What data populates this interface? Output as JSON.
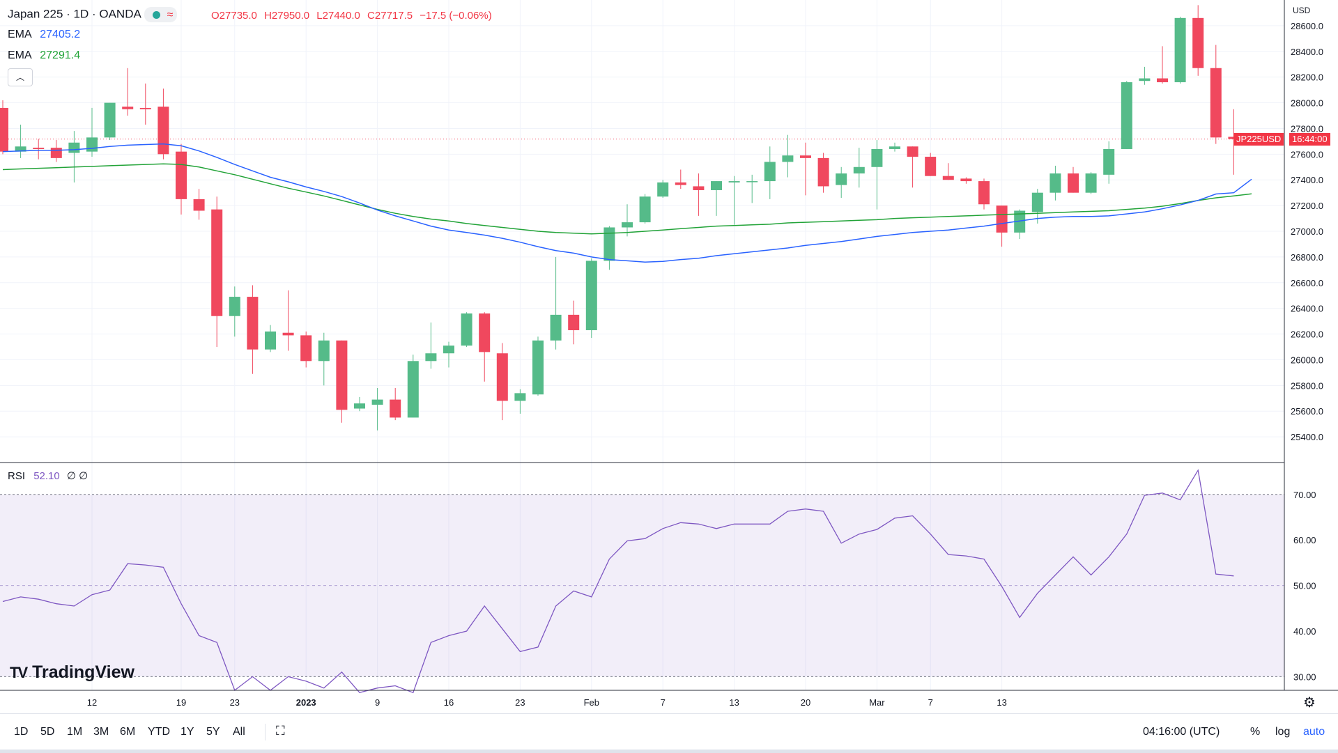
{
  "header": {
    "title": "Japan 225 · 1D · OANDA",
    "open": "O27735.0",
    "high": "H27950.0",
    "low": "L27440.0",
    "close": "C27717.5",
    "change": "−17.5 (−0.06%)",
    "ema1_label": "EMA",
    "ema1_value": "27405.2",
    "ema2_label": "EMA",
    "ema2_value": "27291.4",
    "currency": "USD"
  },
  "rsi": {
    "label": "RSI",
    "value": "52.10",
    "extra": "∅ ∅"
  },
  "logo": "TradingView",
  "price_label": {
    "symbol": "JP225USD",
    "time": "16:44:00"
  },
  "toolbar": {
    "timeframes": [
      "1D",
      "5D",
      "1M",
      "3M",
      "6M",
      "YTD",
      "1Y",
      "5Y",
      "All"
    ],
    "clock": "04:16:00 (UTC)",
    "pct": "%",
    "log": "log",
    "auto": "auto"
  },
  "colors": {
    "up": "#55bb89",
    "down": "#f0485e",
    "ema_fast": "#2962ff",
    "ema_slow": "#22a338",
    "rsi": "#7e57c2"
  },
  "icons": [
    "indicator-status-dot",
    "wave-icon",
    "chevron-up-icon",
    "calendar-range-icon",
    "gear-icon"
  ],
  "chart_data": [
    {
      "type": "candlestick",
      "title": "Japan 225 · 1D · OANDA",
      "ylim": [
        25200,
        28800
      ],
      "yticks": [
        25400,
        25600,
        25800,
        26000,
        26200,
        26400,
        26600,
        26800,
        27000,
        27200,
        27400,
        27600,
        27800,
        28000,
        28200,
        28400,
        28600
      ],
      "xtick_labels": [
        "12",
        "19",
        "23",
        "2023",
        "9",
        "16",
        "23",
        "Feb",
        "7",
        "13",
        "20",
        "Mar",
        "7",
        "13"
      ],
      "candles": [
        {
          "o": 27960,
          "h": 28020,
          "l": 27600,
          "c": 27620
        },
        {
          "o": 27620,
          "h": 27830,
          "l": 27570,
          "c": 27660
        },
        {
          "o": 27650,
          "h": 27720,
          "l": 27560,
          "c": 27640
        },
        {
          "o": 27650,
          "h": 27710,
          "l": 27540,
          "c": 27570
        },
        {
          "o": 27610,
          "h": 27780,
          "l": 27380,
          "c": 27690
        },
        {
          "o": 27620,
          "h": 27960,
          "l": 27580,
          "c": 27730
        },
        {
          "o": 27730,
          "h": 28000,
          "l": 27710,
          "c": 28000
        },
        {
          "o": 27970,
          "h": 28270,
          "l": 27900,
          "c": 27950
        },
        {
          "o": 27960,
          "h": 28150,
          "l": 27830,
          "c": 27950
        },
        {
          "o": 27970,
          "h": 28110,
          "l": 27560,
          "c": 27600
        },
        {
          "o": 27620,
          "h": 27680,
          "l": 27130,
          "c": 27250
        },
        {
          "o": 27250,
          "h": 27330,
          "l": 27090,
          "c": 27160
        },
        {
          "o": 27170,
          "h": 27270,
          "l": 26100,
          "c": 26340
        },
        {
          "o": 26340,
          "h": 26570,
          "l": 26180,
          "c": 26490
        },
        {
          "o": 26490,
          "h": 26580,
          "l": 25890,
          "c": 26080
        },
        {
          "o": 26080,
          "h": 26270,
          "l": 26060,
          "c": 26220
        },
        {
          "o": 26210,
          "h": 26540,
          "l": 26070,
          "c": 26190
        },
        {
          "o": 26190,
          "h": 26220,
          "l": 25940,
          "c": 25990
        },
        {
          "o": 25990,
          "h": 26210,
          "l": 25800,
          "c": 26150
        },
        {
          "o": 26150,
          "h": 26150,
          "l": 25510,
          "c": 25610
        },
        {
          "o": 25620,
          "h": 25710,
          "l": 25600,
          "c": 25660
        },
        {
          "o": 25650,
          "h": 25780,
          "l": 25450,
          "c": 25690
        },
        {
          "o": 25690,
          "h": 25780,
          "l": 25530,
          "c": 25550
        },
        {
          "o": 25550,
          "h": 26040,
          "l": 25550,
          "c": 25990
        },
        {
          "o": 25990,
          "h": 26290,
          "l": 25930,
          "c": 26050
        },
        {
          "o": 26050,
          "h": 26140,
          "l": 25940,
          "c": 26110
        },
        {
          "o": 26110,
          "h": 26370,
          "l": 26100,
          "c": 26360
        },
        {
          "o": 26360,
          "h": 26370,
          "l": 25830,
          "c": 26060
        },
        {
          "o": 26050,
          "h": 26130,
          "l": 25530,
          "c": 25680
        },
        {
          "o": 25680,
          "h": 25770,
          "l": 25580,
          "c": 25740
        },
        {
          "o": 25730,
          "h": 26180,
          "l": 25720,
          "c": 26150
        },
        {
          "o": 26150,
          "h": 26800,
          "l": 26080,
          "c": 26350
        },
        {
          "o": 26350,
          "h": 26460,
          "l": 26120,
          "c": 26230
        },
        {
          "o": 26230,
          "h": 26790,
          "l": 26170,
          "c": 26770
        },
        {
          "o": 26770,
          "h": 27040,
          "l": 26700,
          "c": 27030
        },
        {
          "o": 27030,
          "h": 27210,
          "l": 26960,
          "c": 27070
        },
        {
          "o": 27070,
          "h": 27290,
          "l": 27060,
          "c": 27270
        },
        {
          "o": 27270,
          "h": 27400,
          "l": 27260,
          "c": 27380
        },
        {
          "o": 27380,
          "h": 27480,
          "l": 27330,
          "c": 27360
        },
        {
          "o": 27350,
          "h": 27450,
          "l": 27120,
          "c": 27320
        },
        {
          "o": 27320,
          "h": 27390,
          "l": 27120,
          "c": 27390
        },
        {
          "o": 27380,
          "h": 27430,
          "l": 27050,
          "c": 27390
        },
        {
          "o": 27390,
          "h": 27440,
          "l": 27220,
          "c": 27390
        },
        {
          "o": 27390,
          "h": 27660,
          "l": 27250,
          "c": 27540
        },
        {
          "o": 27540,
          "h": 27750,
          "l": 27420,
          "c": 27590
        },
        {
          "o": 27590,
          "h": 27690,
          "l": 27280,
          "c": 27570
        },
        {
          "o": 27570,
          "h": 27610,
          "l": 27300,
          "c": 27350
        },
        {
          "o": 27360,
          "h": 27500,
          "l": 27260,
          "c": 27450
        },
        {
          "o": 27450,
          "h": 27650,
          "l": 27340,
          "c": 27500
        },
        {
          "o": 27500,
          "h": 27710,
          "l": 27170,
          "c": 27640
        },
        {
          "o": 27640,
          "h": 27690,
          "l": 27620,
          "c": 27660
        },
        {
          "o": 27660,
          "h": 27660,
          "l": 27340,
          "c": 27580
        },
        {
          "o": 27580,
          "h": 27610,
          "l": 27430,
          "c": 27430
        },
        {
          "o": 27430,
          "h": 27530,
          "l": 27400,
          "c": 27400
        },
        {
          "o": 27410,
          "h": 27420,
          "l": 27370,
          "c": 27390
        },
        {
          "o": 27390,
          "h": 27410,
          "l": 27170,
          "c": 27210
        },
        {
          "o": 27200,
          "h": 27200,
          "l": 26880,
          "c": 26990
        },
        {
          "o": 26990,
          "h": 27170,
          "l": 26940,
          "c": 27160
        },
        {
          "o": 27150,
          "h": 27330,
          "l": 27060,
          "c": 27300
        },
        {
          "o": 27300,
          "h": 27510,
          "l": 27240,
          "c": 27450
        },
        {
          "o": 27450,
          "h": 27500,
          "l": 27300,
          "c": 27300
        },
        {
          "o": 27300,
          "h": 27460,
          "l": 27290,
          "c": 27450
        },
        {
          "o": 27440,
          "h": 27700,
          "l": 27370,
          "c": 27640
        },
        {
          "o": 27640,
          "h": 28170,
          "l": 27640,
          "c": 28160
        },
        {
          "o": 28170,
          "h": 28280,
          "l": 28140,
          "c": 28190
        },
        {
          "o": 28190,
          "h": 28440,
          "l": 28150,
          "c": 28160
        },
        {
          "o": 28160,
          "h": 28670,
          "l": 28150,
          "c": 28660
        },
        {
          "o": 28660,
          "h": 28760,
          "l": 28210,
          "c": 28270
        },
        {
          "o": 28270,
          "h": 28450,
          "l": 27680,
          "c": 27730
        },
        {
          "o": 27735,
          "h": 27950,
          "l": 27440,
          "c": 27717.5
        }
      ],
      "series": [
        {
          "name": "EMA",
          "values": [
            27620,
            27625,
            27630,
            27630,
            27635,
            27645,
            27660,
            27670,
            27675,
            27680,
            27665,
            27625,
            27575,
            27520,
            27470,
            27420,
            27385,
            27345,
            27310,
            27270,
            27220,
            27165,
            27120,
            27080,
            27040,
            27010,
            26990,
            26970,
            26945,
            26915,
            26880,
            26850,
            26830,
            26800,
            26780,
            26770,
            26760,
            26765,
            26780,
            26790,
            26810,
            26825,
            26840,
            26855,
            26870,
            26890,
            26905,
            26920,
            26940,
            26960,
            26975,
            26990,
            27000,
            27010,
            27025,
            27040,
            27060,
            27080,
            27100,
            27110,
            27115,
            27115,
            27120,
            27135,
            27150,
            27175,
            27205,
            27240,
            27290,
            27300,
            27405.2
          ]
        },
        {
          "name": "EMA",
          "values": [
            27480,
            27485,
            27490,
            27495,
            27500,
            27505,
            27510,
            27515,
            27520,
            27525,
            27520,
            27500,
            27470,
            27440,
            27405,
            27370,
            27335,
            27305,
            27275,
            27240,
            27205,
            27170,
            27140,
            27115,
            27095,
            27080,
            27060,
            27045,
            27030,
            27015,
            27000,
            26990,
            26985,
            26980,
            26985,
            26990,
            27000,
            27010,
            27020,
            27030,
            27040,
            27045,
            27050,
            27055,
            27065,
            27070,
            27075,
            27080,
            27085,
            27090,
            27100,
            27105,
            27110,
            27115,
            27120,
            27125,
            27130,
            27135,
            27140,
            27145,
            27150,
            27155,
            27160,
            27170,
            27180,
            27195,
            27215,
            27240,
            27260,
            27275,
            27291.4
          ]
        }
      ]
    },
    {
      "type": "line",
      "title": "RSI",
      "ylim": [
        27,
        77
      ],
      "yticks": [
        30,
        40,
        50,
        60,
        70
      ],
      "band": [
        30,
        70
      ],
      "midline": 50,
      "series": [
        {
          "name": "RSI",
          "values": [
            46.5,
            47.5,
            47,
            46,
            45.5,
            48,
            49,
            54.8,
            54.5,
            54,
            46,
            39,
            37.5,
            27,
            30,
            27,
            30,
            29,
            27.5,
            31,
            26.5,
            27.5,
            28,
            26.5,
            37.5,
            39,
            40,
            45.5,
            40.5,
            35.5,
            36.5,
            45.5,
            48.8,
            47.5,
            55.8,
            59.8,
            60.3,
            62.5,
            63.8,
            63.5,
            62.5,
            63.5,
            63.5,
            63.5,
            66.3,
            66.8,
            66.3,
            59.3,
            61.3,
            62.3,
            64.8,
            65.3,
            61.3,
            56.8,
            56.5,
            55.8,
            49.8,
            43,
            48.3,
            52.3,
            56.3,
            52.3,
            56.3,
            61.3,
            69.8,
            70.3,
            68.8,
            75.3,
            52.5,
            52.1
          ]
        }
      ]
    }
  ]
}
